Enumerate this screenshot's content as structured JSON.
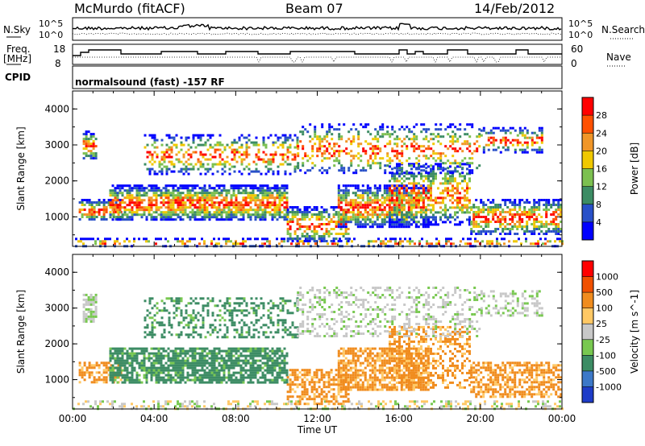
{
  "header": {
    "station": "McMurdo (fitACF)",
    "beam": "Beam 07",
    "date": "14/Feb/2012"
  },
  "strip_labels": {
    "nsky": "N.Sky",
    "nsky_ticks": [
      "10^5",
      "10^0"
    ],
    "nsearch": "N.Search",
    "nsearch_ticks": [
      "10^5",
      "10^0"
    ],
    "freq": "Freq.",
    "freq_unit": "[MHz]",
    "freq_ticks": [
      "18",
      "8"
    ],
    "nave": "Nave",
    "nave_ticks": [
      "60",
      "0"
    ],
    "cpid": "CPID",
    "mode": "normalsound (fast) -157 RF"
  },
  "chart_data": [
    {
      "type": "heatmap",
      "name": "power",
      "ylabel": "Slant Range [km]",
      "yticks": [
        1000,
        2000,
        3000,
        4000
      ],
      "ylim": [
        180,
        4500
      ],
      "xlim": [
        0,
        24
      ],
      "colorbar_label": "Power [dB]",
      "colorbar_ticks": [
        "28",
        "24",
        "20",
        "16",
        "12",
        "8",
        "4"
      ],
      "colorbar_colors": [
        "#0000ff",
        "#2850c8",
        "#3c8c64",
        "#7cc050",
        "#f0c800",
        "#f09628",
        "#ff5000",
        "#ff0000"
      ]
    },
    {
      "type": "heatmap",
      "name": "velocity",
      "ylabel": "Slant Range [km]",
      "yticks": [
        1000,
        2000,
        3000,
        4000
      ],
      "ylim": [
        180,
        4500
      ],
      "xlim": [
        0,
        24
      ],
      "colorbar_label": "Velocity [m s^-1]",
      "colorbar_ticks": [
        "1000",
        "500",
        "100",
        "25",
        "-25",
        "-100",
        "-500",
        "-1000"
      ],
      "colorbar_colors": [
        "#1e3cc8",
        "#3c78c8",
        "#3c8c64",
        "#78c850",
        "#c8c8c8",
        "#ffc864",
        "#f08c1e",
        "#f05000",
        "#ff0000"
      ],
      "xticks": [
        "00:00",
        "04:00",
        "08:00",
        "12:00",
        "16:00",
        "20:00",
        "00:00"
      ],
      "xlabel": "Time UT"
    }
  ],
  "colors": {
    "axis": "#000000",
    "ground_scatter": "#c8c8c8"
  }
}
